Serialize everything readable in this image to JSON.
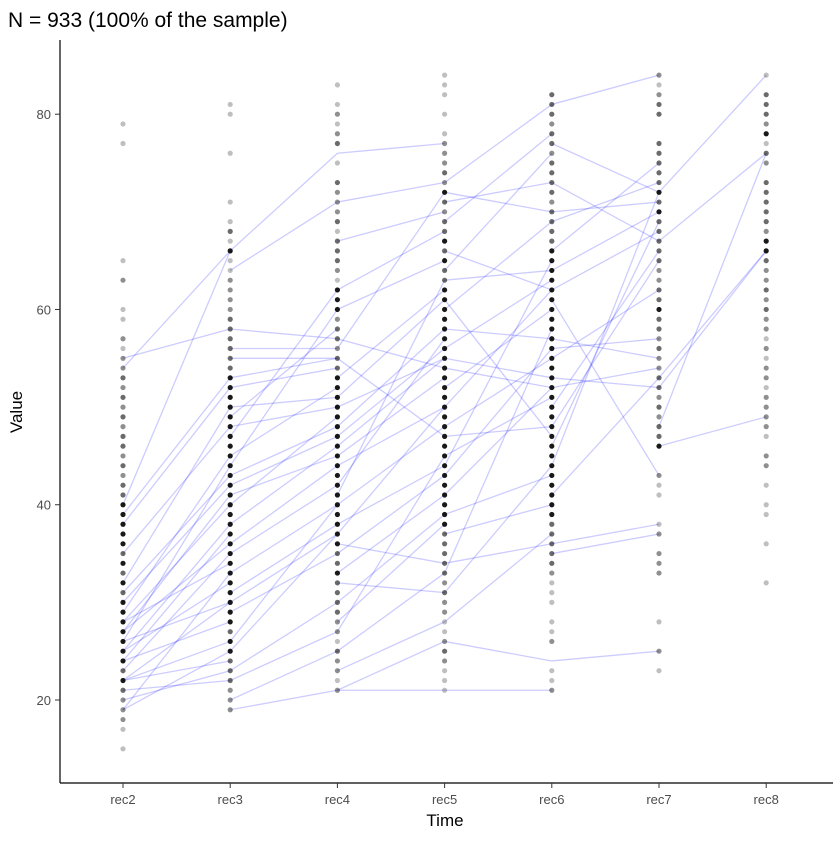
{
  "chart_data": {
    "type": "scatter",
    "title": "N = 933 (100% of the sample)",
    "xlabel": "Time",
    "ylabel": "Value",
    "categories": [
      "rec2",
      "rec3",
      "rec4",
      "rec5",
      "rec6",
      "rec7",
      "rec8"
    ],
    "ylim": [
      11.5,
      87.6
    ],
    "yticks": [
      20,
      40,
      60,
      80
    ],
    "ytick_labels": [
      "20",
      "40",
      "60",
      "80"
    ],
    "grid": false,
    "point_color": "#000000",
    "line_color": "#0000ff",
    "point_counts": [
      {
        "min": 15,
        "counts": [
          1,
          0,
          1,
          2,
          2,
          2,
          3,
          4,
          3,
          4,
          4,
          4,
          4,
          4,
          4,
          4,
          3,
          4,
          3,
          4,
          3,
          4,
          4,
          4,
          4,
          4,
          3,
          3,
          2,
          3,
          2,
          3,
          3,
          2,
          3,
          2,
          3,
          2,
          3,
          2,
          2,
          1,
          2,
          0,
          1,
          1,
          0,
          0,
          2,
          0,
          1,
          0,
          0,
          0,
          0,
          0,
          0,
          0,
          0,
          0,
          0,
          0,
          1,
          0,
          1
        ]
      },
      {
        "min": 19,
        "counts": [
          2,
          2,
          2,
          3,
          3,
          3,
          4,
          4,
          3,
          4,
          4,
          4,
          4,
          4,
          4,
          4,
          4,
          4,
          4,
          4,
          4,
          4,
          4,
          4,
          4,
          4,
          4,
          4,
          4,
          4,
          4,
          4,
          4,
          4,
          4,
          3,
          3,
          3,
          3,
          3,
          3,
          2,
          2,
          2,
          2,
          1,
          1,
          4,
          1,
          3,
          1,
          0,
          1,
          0,
          0,
          0,
          0,
          1,
          0,
          0,
          0,
          1,
          1
        ]
      },
      {
        "min": 21,
        "counts": [
          2,
          1,
          2,
          2,
          3,
          1,
          2,
          2,
          3,
          3,
          3,
          3,
          4,
          3,
          3,
          4,
          4,
          4,
          4,
          4,
          4,
          4,
          4,
          4,
          4,
          4,
          4,
          4,
          4,
          4,
          4,
          4,
          4,
          3,
          3,
          2,
          3,
          3,
          2,
          4,
          4,
          4,
          1,
          2,
          3,
          3,
          3,
          1,
          3,
          2,
          2,
          2,
          3,
          0,
          1,
          0,
          3,
          2,
          1,
          2,
          1,
          0,
          1
        ]
      },
      {
        "min": 21,
        "counts": [
          1,
          1,
          1,
          2,
          3,
          2,
          1,
          1,
          2,
          2,
          3,
          2,
          3,
          3,
          3,
          3,
          3,
          4,
          4,
          4,
          4,
          4,
          4,
          4,
          4,
          4,
          4,
          4,
          4,
          4,
          4,
          4,
          4,
          4,
          4,
          4,
          4,
          4,
          4,
          4,
          4,
          4,
          3,
          3,
          4,
          3,
          4,
          3,
          3,
          2,
          3,
          4,
          2,
          3,
          2,
          2,
          2,
          1,
          0,
          1,
          0,
          1,
          1,
          1
        ]
      },
      {
        "min": 21,
        "counts": [
          2,
          1,
          1,
          0,
          0,
          2,
          1,
          1,
          0,
          1,
          1,
          1,
          2,
          3,
          3,
          3,
          3,
          3,
          4,
          4,
          4,
          4,
          4,
          4,
          4,
          4,
          4,
          4,
          4,
          4,
          4,
          4,
          4,
          4,
          4,
          4,
          4,
          4,
          4,
          4,
          4,
          4,
          4,
          4,
          4,
          4,
          3,
          3,
          3,
          3,
          2,
          3,
          3,
          3,
          3,
          2,
          3,
          3,
          2,
          3,
          3,
          3
        ]
      },
      {
        "min": 23,
        "counts": [
          1,
          0,
          2,
          0,
          0,
          1,
          0,
          0,
          0,
          0,
          2,
          2,
          2,
          0,
          2,
          1,
          0,
          0,
          1,
          1,
          2,
          0,
          0,
          4,
          3,
          3,
          2,
          3,
          2,
          3,
          3,
          2,
          2,
          3,
          2,
          3,
          3,
          4,
          3,
          3,
          2,
          2,
          3,
          3,
          3,
          3,
          3,
          4,
          3,
          4,
          3,
          3,
          3,
          3,
          3,
          0,
          0,
          3,
          3,
          2,
          1,
          2
        ]
      },
      {
        "min": 32,
        "counts": [
          1,
          0,
          0,
          0,
          1,
          0,
          0,
          1,
          1,
          0,
          1,
          0,
          2,
          2,
          0,
          1,
          2,
          2,
          2,
          2,
          1,
          2,
          2,
          1,
          2,
          1,
          2,
          2,
          3,
          2,
          3,
          2,
          2,
          3,
          4,
          4,
          2,
          3,
          3,
          3,
          3,
          3,
          0,
          2,
          3,
          1,
          4,
          2,
          3,
          3,
          3,
          0,
          1
        ]
      }
    ],
    "segments": [
      [
        0,
        55,
        1,
        58
      ],
      [
        0,
        54,
        1,
        66
      ],
      [
        0,
        40,
        1,
        66
      ],
      [
        0,
        38,
        1,
        52
      ],
      [
        0,
        35,
        1,
        48
      ],
      [
        0,
        32,
        1,
        50
      ],
      [
        0,
        31,
        1,
        43
      ],
      [
        0,
        30,
        1,
        42
      ],
      [
        0,
        29,
        1,
        45
      ],
      [
        0,
        28,
        1,
        40
      ],
      [
        0,
        27,
        1,
        41
      ],
      [
        0,
        27,
        1,
        36
      ],
      [
        0,
        26,
        1,
        44
      ],
      [
        0,
        25,
        1,
        38
      ],
      [
        0,
        25,
        1,
        32
      ],
      [
        0,
        24,
        1,
        37
      ],
      [
        0,
        23,
        1,
        35
      ],
      [
        0,
        22,
        1,
        30
      ],
      [
        0,
        22,
        1,
        26
      ],
      [
        0,
        21,
        1,
        22
      ],
      [
        0,
        20,
        1,
        23
      ],
      [
        0,
        19,
        1,
        33
      ],
      [
        0,
        19,
        1,
        25
      ],
      [
        0,
        39,
        1,
        53
      ],
      [
        0,
        26,
        1,
        30
      ],
      [
        0,
        24,
        1,
        28
      ],
      [
        0,
        28,
        1,
        34
      ],
      [
        0,
        22,
        1,
        24
      ],
      [
        1,
        66,
        2,
        76
      ],
      [
        1,
        64,
        2,
        71
      ],
      [
        1,
        58,
        2,
        57
      ],
      [
        1,
        56,
        2,
        56
      ],
      [
        1,
        55,
        2,
        55
      ],
      [
        1,
        53,
        2,
        55
      ],
      [
        1,
        52,
        2,
        54
      ],
      [
        1,
        50,
        2,
        51
      ],
      [
        1,
        48,
        2,
        50
      ],
      [
        1,
        45,
        2,
        52
      ],
      [
        1,
        43,
        2,
        48
      ],
      [
        1,
        42,
        2,
        47
      ],
      [
        1,
        41,
        2,
        45
      ],
      [
        1,
        40,
        2,
        49
      ],
      [
        1,
        38,
        2,
        46
      ],
      [
        1,
        36,
        2,
        44
      ],
      [
        1,
        35,
        2,
        42
      ],
      [
        1,
        33,
        2,
        40
      ],
      [
        1,
        31,
        2,
        38
      ],
      [
        1,
        30,
        2,
        37
      ],
      [
        1,
        29,
        2,
        35
      ],
      [
        1,
        26,
        2,
        40
      ],
      [
        1,
        25,
        2,
        37
      ],
      [
        1,
        23,
        2,
        30
      ],
      [
        1,
        22,
        2,
        27
      ],
      [
        1,
        19,
        2,
        21
      ],
      [
        1,
        20,
        2,
        25
      ],
      [
        1,
        44,
        2,
        60
      ],
      [
        1,
        47,
        2,
        62
      ],
      [
        1,
        49,
        2,
        58
      ],
      [
        2,
        76,
        3,
        77
      ],
      [
        2,
        71,
        3,
        73
      ],
      [
        2,
        67,
        3,
        70
      ],
      [
        2,
        62,
        3,
        68
      ],
      [
        2,
        60,
        3,
        65
      ],
      [
        2,
        57,
        3,
        54
      ],
      [
        2,
        56,
        3,
        72
      ],
      [
        2,
        55,
        3,
        47
      ],
      [
        2,
        53,
        3,
        62
      ],
      [
        2,
        51,
        3,
        61
      ],
      [
        2,
        50,
        3,
        55
      ],
      [
        2,
        48,
        3,
        58
      ],
      [
        2,
        47,
        3,
        56
      ],
      [
        2,
        46,
        3,
        55
      ],
      [
        2,
        45,
        3,
        53
      ],
      [
        2,
        44,
        3,
        50
      ],
      [
        2,
        42,
        3,
        57
      ],
      [
        2,
        40,
        3,
        48
      ],
      [
        2,
        38,
        3,
        44
      ],
      [
        2,
        37,
        3,
        50
      ],
      [
        2,
        35,
        3,
        43
      ],
      [
        2,
        33,
        3,
        41
      ],
      [
        2,
        32,
        3,
        31
      ],
      [
        2,
        30,
        3,
        39
      ],
      [
        2,
        28,
        3,
        38
      ],
      [
        2,
        25,
        3,
        33
      ],
      [
        2,
        23,
        3,
        28
      ],
      [
        2,
        21,
        3,
        21
      ],
      [
        2,
        21,
        3,
        26
      ],
      [
        2,
        27,
        3,
        45
      ],
      [
        2,
        41,
        3,
        63
      ],
      [
        2,
        36,
        3,
        34
      ],
      [
        3,
        73,
        4,
        81
      ],
      [
        3,
        72,
        4,
        70
      ],
      [
        3,
        71,
        4,
        73
      ],
      [
        3,
        69,
        4,
        78
      ],
      [
        3,
        66,
        4,
        62
      ],
      [
        3,
        64,
        4,
        76
      ],
      [
        3,
        63,
        4,
        64
      ],
      [
        3,
        61,
        4,
        47
      ],
      [
        3,
        60,
        4,
        69
      ],
      [
        3,
        58,
        4,
        57
      ],
      [
        3,
        56,
        4,
        63
      ],
      [
        3,
        55,
        4,
        53
      ],
      [
        3,
        54,
        4,
        52
      ],
      [
        3,
        52,
        4,
        60
      ],
      [
        3,
        50,
        4,
        62
      ],
      [
        3,
        48,
        4,
        55
      ],
      [
        3,
        47,
        4,
        48
      ],
      [
        3,
        45,
        4,
        51
      ],
      [
        3,
        44,
        4,
        65
      ],
      [
        3,
        43,
        4,
        56
      ],
      [
        3,
        41,
        4,
        52
      ],
      [
        3,
        39,
        4,
        43
      ],
      [
        3,
        37,
        4,
        40
      ],
      [
        3,
        34,
        4,
        36
      ],
      [
        3,
        31,
        4,
        44
      ],
      [
        3,
        28,
        4,
        37
      ],
      [
        3,
        26,
        4,
        24
      ],
      [
        3,
        21,
        4,
        21
      ],
      [
        3,
        33,
        4,
        58
      ],
      [
        4,
        81,
        5,
        84
      ],
      [
        4,
        77,
        5,
        72
      ],
      [
        4,
        73,
        5,
        67
      ],
      [
        4,
        70,
        5,
        71
      ],
      [
        4,
        69,
        5,
        73
      ],
      [
        4,
        66,
        5,
        75
      ],
      [
        4,
        64,
        5,
        70
      ],
      [
        4,
        62,
        5,
        68
      ],
      [
        4,
        61,
        5,
        43
      ],
      [
        4,
        57,
        5,
        55
      ],
      [
        4,
        56,
        5,
        57
      ],
      [
        4,
        55,
        5,
        62
      ],
      [
        4,
        53,
        5,
        52
      ],
      [
        4,
        52,
        5,
        54
      ],
      [
        4,
        50,
        5,
        66
      ],
      [
        4,
        48,
        5,
        65
      ],
      [
        4,
        46,
        5,
        69
      ],
      [
        4,
        41,
        5,
        53
      ],
      [
        4,
        36,
        5,
        38
      ],
      [
        4,
        35,
        5,
        37
      ],
      [
        4,
        24,
        5,
        25
      ],
      [
        4,
        44,
        5,
        72
      ],
      [
        5,
        72,
        6,
        84
      ],
      [
        5,
        67,
        6,
        76
      ],
      [
        5,
        48,
        6,
        76
      ],
      [
        5,
        52,
        6,
        66
      ],
      [
        5,
        53,
        6,
        66
      ],
      [
        5,
        46,
        6,
        49
      ]
    ]
  }
}
